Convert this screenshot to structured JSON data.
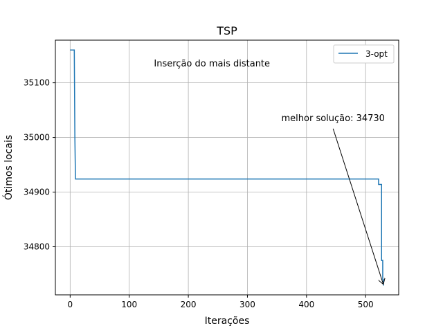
{
  "chart_data": {
    "type": "line",
    "title": "TSP",
    "xlabel": "Iterações",
    "ylabel": "Ótimos locais",
    "xlim": [
      -25,
      556
    ],
    "ylim": [
      34712,
      35178
    ],
    "xticks": [
      0,
      100,
      200,
      300,
      400,
      500
    ],
    "yticks": [
      34800,
      34900,
      35000,
      35100
    ],
    "grid": true,
    "legend_position": "top-right",
    "colors": {
      "series": "#1f77b4",
      "grid": "#b0b0b0",
      "text": "#000000"
    },
    "series": [
      {
        "name": "3-opt",
        "x": [
          0,
          1,
          2,
          3,
          4,
          5,
          6,
          7,
          7,
          8,
          8,
          9,
          9,
          521,
          522,
          522,
          523,
          526,
          527,
          527,
          528,
          529,
          529,
          530,
          530,
          531
        ],
        "y": [
          35160,
          35160,
          35160,
          35160,
          35160,
          35160,
          35160,
          35160,
          35160,
          35000,
          35000,
          34924,
          34924,
          34924,
          34924,
          34914,
          34914,
          34914,
          34914,
          34775,
          34775,
          34775,
          34740,
          34740,
          34730,
          34730
        ]
      }
    ],
    "annotations": [
      {
        "text": "Inserção do mais distante",
        "x": 240,
        "y": 35130
      },
      {
        "text": "melhor solução: 34730",
        "x": 530,
        "y": 34730,
        "text_x": 445,
        "text_y": 35030,
        "arrow": true
      }
    ]
  }
}
